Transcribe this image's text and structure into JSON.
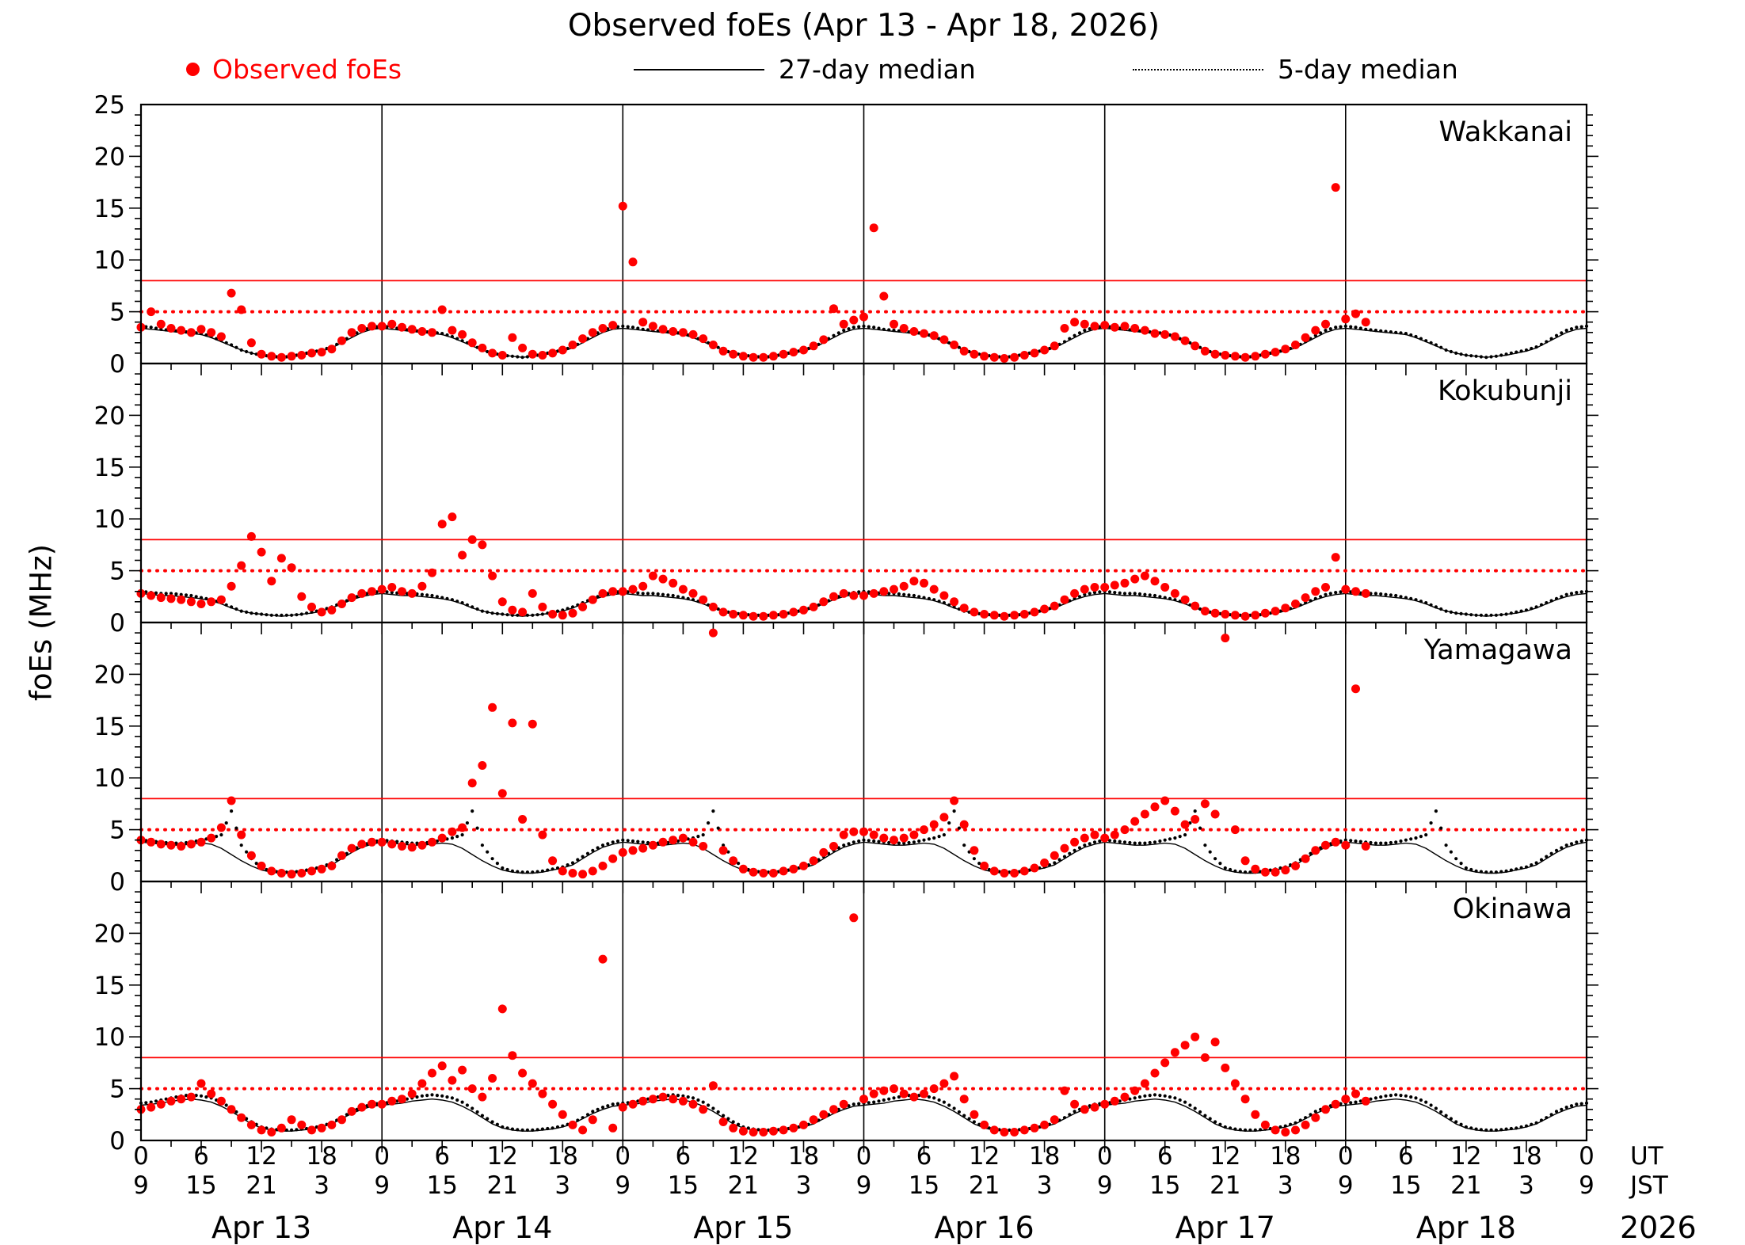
{
  "chart_data": {
    "type": "scatter",
    "title": "Observed foEs (Apr 13 - Apr 18, 2026)",
    "ylabel": "foEs (MHz)",
    "legend": {
      "observed": "Observed foEs",
      "median27": "27-day median",
      "median5": "5-day median"
    },
    "colors": {
      "observed": "#ff0000",
      "median": "#000000",
      "threshold_solid": "#ff0000",
      "threshold_dotted": "#ff0000"
    },
    "ylim": [
      0,
      25
    ],
    "ytick_major": 5,
    "hours_total": 144,
    "xtick_major_hours": 6,
    "xtick_minor_hours": 3,
    "thresholds": {
      "solid_mhz": 8,
      "dotted_mhz": 5
    },
    "x_axis": {
      "ut_label": "UT",
      "jst_label": "JST",
      "year": "2026",
      "ut_cycle": [
        0,
        6,
        12,
        18
      ],
      "jst_cycle": [
        9,
        15,
        21,
        3
      ],
      "days": [
        "Apr 13",
        "Apr 14",
        "Apr 15",
        "Apr 16",
        "Apr 17",
        "Apr 18"
      ]
    },
    "panels": [
      {
        "station": "Wakkanai",
        "observed_start_hour": 0,
        "observed_step_hours": 1,
        "observed": [
          3.5,
          5.0,
          3.8,
          3.4,
          3.2,
          3.0,
          3.3,
          3.0,
          2.6,
          6.8,
          5.2,
          2.0,
          0.9,
          0.7,
          0.6,
          0.7,
          0.8,
          1.0,
          1.1,
          1.4,
          2.2,
          3.0,
          3.4,
          3.6,
          3.6,
          3.8,
          3.5,
          3.3,
          3.1,
          3.0,
          5.2,
          3.2,
          2.8,
          2.0,
          1.5,
          1.0,
          0.8,
          2.5,
          1.5,
          0.9,
          0.8,
          1.0,
          1.3,
          1.8,
          2.4,
          3.0,
          3.4,
          3.7,
          15.2,
          9.8,
          4.0,
          3.6,
          3.3,
          3.1,
          3.0,
          2.8,
          2.4,
          1.8,
          1.2,
          0.9,
          0.7,
          0.6,
          0.6,
          0.7,
          0.9,
          1.1,
          1.3,
          1.7,
          2.3,
          5.3,
          3.8,
          4.2,
          4.5,
          13.1,
          6.5,
          3.8,
          3.4,
          3.1,
          2.9,
          2.7,
          2.3,
          1.8,
          1.2,
          0.9,
          0.7,
          0.6,
          0.5,
          0.6,
          0.8,
          1.0,
          1.3,
          1.7,
          3.4,
          4.0,
          3.8,
          3.6,
          3.7,
          3.5,
          3.6,
          3.4,
          3.2,
          2.9,
          2.8,
          2.6,
          2.2,
          1.7,
          1.2,
          0.9,
          0.8,
          0.7,
          0.6,
          0.7,
          0.9,
          1.1,
          1.4,
          1.8,
          2.5,
          3.2,
          3.8,
          17.0,
          4.3,
          4.8,
          4.0
        ],
        "median27_daily": [
          3.4,
          3.3,
          3.2,
          3.1,
          3.0,
          2.9,
          2.8,
          2.5,
          2.1,
          1.7,
          1.3,
          1.0,
          0.8,
          0.7,
          0.6,
          0.7,
          0.8,
          1.0,
          1.2,
          1.5,
          2.0,
          2.5,
          3.0,
          3.3
        ],
        "median5_daily": [
          3.6,
          3.5,
          3.3,
          3.2,
          3.1,
          3.0,
          2.9,
          2.6,
          2.2,
          1.8,
          1.3,
          1.0,
          0.8,
          0.7,
          0.6,
          0.7,
          0.9,
          1.1,
          1.3,
          1.6,
          2.1,
          2.7,
          3.2,
          3.5
        ]
      },
      {
        "station": "Kokubunji",
        "observed_start_hour": 0,
        "observed_step_hours": 1,
        "observed": [
          2.8,
          2.6,
          2.4,
          2.3,
          2.2,
          2.0,
          1.8,
          2.0,
          2.2,
          3.5,
          5.5,
          8.3,
          6.8,
          4.0,
          6.2,
          5.3,
          2.5,
          1.5,
          1.0,
          1.2,
          1.8,
          2.4,
          2.8,
          3.0,
          3.2,
          3.4,
          3.0,
          2.8,
          3.5,
          4.8,
          9.5,
          10.2,
          6.5,
          8.0,
          7.5,
          4.5,
          2.0,
          1.2,
          1.0,
          2.8,
          1.5,
          0.8,
          0.7,
          0.9,
          1.5,
          2.2,
          2.8,
          3.0,
          3.0,
          3.2,
          3.5,
          4.5,
          4.2,
          3.8,
          3.2,
          2.8,
          2.2,
          1.5,
          1.0,
          0.8,
          0.7,
          0.6,
          0.6,
          0.7,
          0.8,
          1.0,
          1.2,
          1.5,
          2.0,
          2.5,
          2.8,
          2.6,
          2.6,
          2.8,
          3.0,
          3.2,
          3.5,
          4.0,
          3.8,
          3.2,
          2.6,
          2.0,
          1.4,
          1.0,
          0.8,
          0.7,
          0.6,
          0.7,
          0.8,
          1.0,
          1.3,
          1.6,
          2.2,
          2.8,
          3.2,
          3.4,
          3.4,
          3.6,
          3.8,
          4.2,
          4.5,
          4.0,
          3.4,
          2.8,
          2.2,
          1.6,
          1.1,
          0.9,
          0.8,
          0.7,
          0.6,
          0.7,
          0.9,
          1.1,
          1.4,
          1.8,
          2.4,
          3.0,
          3.4,
          6.3,
          3.2,
          3.0,
          2.8
        ],
        "median27_daily": [
          2.8,
          2.7,
          2.6,
          2.6,
          2.5,
          2.4,
          2.3,
          2.1,
          1.8,
          1.4,
          1.1,
          0.9,
          0.8,
          0.7,
          0.6,
          0.7,
          0.8,
          0.9,
          1.1,
          1.4,
          1.8,
          2.2,
          2.5,
          2.7
        ],
        "median5_daily": [
          3.0,
          2.9,
          2.8,
          2.8,
          2.7,
          2.6,
          2.4,
          2.2,
          1.9,
          1.5,
          1.1,
          0.9,
          0.8,
          0.7,
          0.7,
          0.7,
          0.8,
          1.0,
          1.2,
          1.5,
          1.9,
          2.3,
          2.7,
          2.9
        ]
      },
      {
        "station": "Yamagawa",
        "observed_start_hour": 0,
        "observed_step_hours": 1,
        "observed": [
          4.0,
          3.8,
          3.6,
          3.5,
          3.4,
          3.6,
          3.8,
          4.2,
          5.2,
          7.8,
          4.5,
          2.5,
          1.5,
          1.0,
          0.8,
          0.7,
          0.8,
          1.0,
          1.2,
          1.5,
          2.5,
          3.2,
          3.6,
          3.8,
          3.8,
          3.6,
          3.4,
          3.3,
          3.5,
          3.8,
          4.2,
          4.8,
          5.2,
          9.5,
          11.2,
          16.8,
          8.5,
          15.3,
          6.0,
          15.2,
          4.5,
          2.0,
          1.0,
          0.8,
          0.7,
          1.0,
          1.5,
          2.2,
          2.8,
          3.0,
          3.2,
          3.5,
          3.8,
          4.0,
          4.2,
          3.8,
          3.4,
          24.0,
          3.0,
          2.0,
          1.2,
          0.9,
          0.8,
          0.8,
          1.0,
          1.2,
          1.5,
          2.0,
          2.8,
          3.4,
          4.5,
          4.8,
          4.8,
          4.5,
          4.2,
          4.0,
          4.2,
          4.5,
          5.0,
          5.5,
          6.2,
          7.8,
          5.5,
          3.0,
          1.5,
          1.0,
          0.8,
          0.8,
          1.0,
          1.3,
          1.8,
          2.5,
          3.2,
          3.8,
          4.2,
          4.5,
          4.2,
          4.5,
          5.0,
          5.8,
          6.5,
          7.2,
          7.8,
          6.8,
          5.5,
          6.0,
          7.5,
          6.5,
          23.5,
          5.0,
          2.0,
          1.2,
          0.9,
          0.9,
          1.1,
          1.5,
          2.2,
          3.0,
          3.5,
          3.8,
          3.5,
          18.6,
          3.4
        ],
        "median27_daily": [
          3.8,
          3.7,
          3.6,
          3.5,
          3.5,
          3.6,
          3.7,
          3.6,
          3.2,
          2.6,
          2.0,
          1.5,
          1.1,
          0.9,
          0.8,
          0.8,
          0.9,
          1.1,
          1.3,
          1.6,
          2.2,
          2.8,
          3.3,
          3.6
        ],
        "median5_daily": [
          4.0,
          3.9,
          3.8,
          3.7,
          3.7,
          3.8,
          4.0,
          4.2,
          4.5,
          6.8,
          3.5,
          2.2,
          1.3,
          1.0,
          0.9,
          0.9,
          1.0,
          1.2,
          1.4,
          1.8,
          2.4,
          3.0,
          3.5,
          3.8
        ]
      },
      {
        "station": "Okinawa",
        "observed_start_hour": 0,
        "observed_step_hours": 1,
        "observed": [
          3.0,
          3.2,
          3.5,
          3.8,
          4.0,
          4.2,
          5.5,
          4.5,
          3.8,
          3.0,
          2.2,
          1.5,
          1.0,
          0.8,
          1.2,
          2.0,
          1.5,
          1.0,
          1.2,
          1.5,
          2.0,
          2.8,
          3.2,
          3.5,
          3.5,
          3.8,
          4.0,
          4.5,
          5.5,
          6.5,
          7.2,
          5.8,
          6.8,
          5.0,
          4.2,
          6.0,
          12.7,
          8.2,
          6.5,
          5.5,
          4.5,
          3.5,
          2.5,
          1.5,
          1.0,
          2.0,
          17.5,
          1.2,
          3.2,
          3.5,
          3.8,
          4.0,
          4.2,
          4.0,
          3.8,
          3.5,
          3.0,
          5.3,
          1.8,
          1.2,
          0.9,
          0.8,
          0.8,
          0.9,
          1.0,
          1.2,
          1.5,
          2.0,
          2.5,
          3.0,
          3.5,
          21.5,
          4.0,
          4.5,
          4.8,
          5.0,
          4.5,
          4.2,
          4.5,
          5.0,
          5.5,
          6.2,
          4.0,
          2.5,
          1.5,
          1.0,
          0.8,
          0.8,
          1.0,
          1.2,
          1.5,
          2.0,
          4.8,
          3.5,
          3.0,
          3.2,
          3.5,
          3.8,
          4.2,
          4.8,
          5.5,
          6.5,
          7.5,
          8.5,
          9.2,
          10.0,
          8.0,
          9.5,
          7.0,
          5.5,
          4.0,
          2.5,
          1.5,
          1.0,
          0.8,
          1.0,
          1.5,
          2.2,
          3.0,
          3.5,
          4.0,
          4.5,
          3.8
        ],
        "median27_daily": [
          3.4,
          3.5,
          3.6,
          3.8,
          3.9,
          4.0,
          3.9,
          3.7,
          3.3,
          2.8,
          2.2,
          1.6,
          1.2,
          1.0,
          0.9,
          0.9,
          1.0,
          1.1,
          1.3,
          1.6,
          2.1,
          2.6,
          3.0,
          3.3
        ],
        "median5_daily": [
          3.6,
          3.7,
          3.9,
          4.1,
          4.3,
          4.4,
          4.3,
          4.1,
          3.7,
          3.1,
          2.4,
          1.8,
          1.3,
          1.1,
          1.0,
          1.0,
          1.1,
          1.2,
          1.4,
          1.7,
          2.2,
          2.8,
          3.2,
          3.5
        ]
      }
    ]
  }
}
